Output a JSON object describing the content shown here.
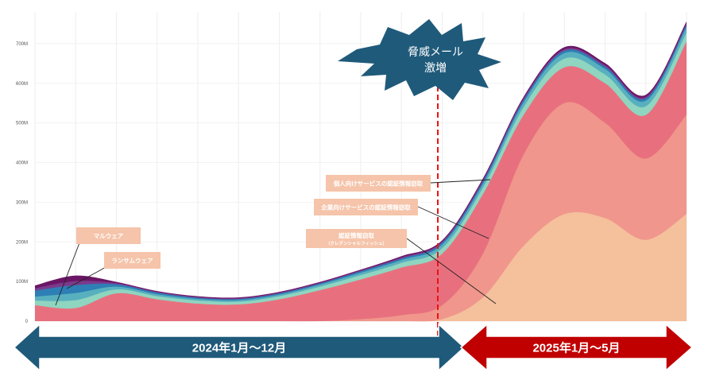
{
  "chart_data": {
    "type": "area",
    "stacked": true,
    "x": [
      0,
      1,
      2,
      3,
      4,
      5,
      6,
      7,
      8,
      9,
      10,
      11,
      12,
      13,
      14,
      15,
      16
    ],
    "ylim": [
      0,
      780
    ],
    "yticks": [
      {
        "value": 0,
        "label": "0"
      },
      {
        "value": 100,
        "label": "100M"
      },
      {
        "value": 200,
        "label": "200M"
      },
      {
        "value": 300,
        "label": "300M"
      },
      {
        "value": 400,
        "label": "400M"
      },
      {
        "value": 500,
        "label": "500M"
      },
      {
        "value": 600,
        "label": "600M"
      },
      {
        "value": 700,
        "label": "700M"
      }
    ],
    "series": [
      {
        "name": "認証情報窃取（クレデンシャルフィッシュ）",
        "color": "#f5c09c",
        "values": [
          0,
          0,
          0,
          0,
          0,
          0,
          0,
          0,
          0,
          0,
          5,
          60,
          190,
          270,
          260,
          205,
          270
        ]
      },
      {
        "name": "企業向けサービスの認証情報窃取",
        "color": "#f0968c",
        "values": [
          0,
          0,
          0,
          0,
          0,
          0,
          0,
          0,
          5,
          15,
          35,
          110,
          230,
          280,
          240,
          205,
          250
        ]
      },
      {
        "name": "個人向けサービスの認証情報窃取",
        "color": "#e8707e",
        "values": [
          40,
          33,
          70,
          55,
          44,
          42,
          55,
          78,
          100,
          120,
          130,
          150,
          100,
          90,
          100,
          110,
          185
        ]
      },
      {
        "name": "ランサムウェア",
        "color": "#8fd5c0",
        "values": [
          12,
          20,
          10,
          8,
          8,
          7,
          8,
          9,
          11,
          12,
          14,
          16,
          20,
          22,
          22,
          22,
          22
        ]
      },
      {
        "name": "",
        "color": "#58b0bf",
        "values": [
          10,
          18,
          7,
          5,
          4,
          4,
          4,
          5,
          6,
          7,
          9,
          10,
          12,
          14,
          14,
          14,
          14
        ]
      },
      {
        "name": "",
        "color": "#2d7fb5",
        "values": [
          15,
          20,
          6,
          4,
          3,
          3,
          3,
          3,
          4,
          4,
          5,
          6,
          6,
          6,
          6,
          6,
          6
        ]
      },
      {
        "name": "",
        "color": "#7b3a8c",
        "values": [
          6,
          10,
          3,
          2,
          2,
          2,
          2,
          2,
          2,
          3,
          3,
          4,
          4,
          4,
          4,
          4,
          4
        ]
      },
      {
        "name": "マルウェア",
        "color": "#6a1565",
        "values": [
          7,
          14,
          3,
          2,
          2,
          2,
          2,
          2,
          2,
          3,
          3,
          4,
          4,
          5,
          5,
          5,
          5
        ]
      }
    ]
  },
  "annotations": {
    "burst_line1": "脅威メール",
    "burst_line2": "激増",
    "label_personal": "個人向けサービスの認証情報窃取",
    "label_enterprise": "企業向けサービスの認証情報窃取",
    "label_credential": "認証情報窃取",
    "label_credential_sub": "（クレデンシャルフィッシュ）",
    "label_malware": "マルウェア",
    "label_ransomware": "ランサムウェア"
  },
  "periods": {
    "first": "2024年1月～12月",
    "second": "2025年1月～5月"
  },
  "colors": {
    "period1": "#1f5a7a",
    "period2": "#c00000",
    "burst": "#1f5a7a",
    "callout_bg": "#f5c4aa",
    "divider": "#ee1111"
  }
}
